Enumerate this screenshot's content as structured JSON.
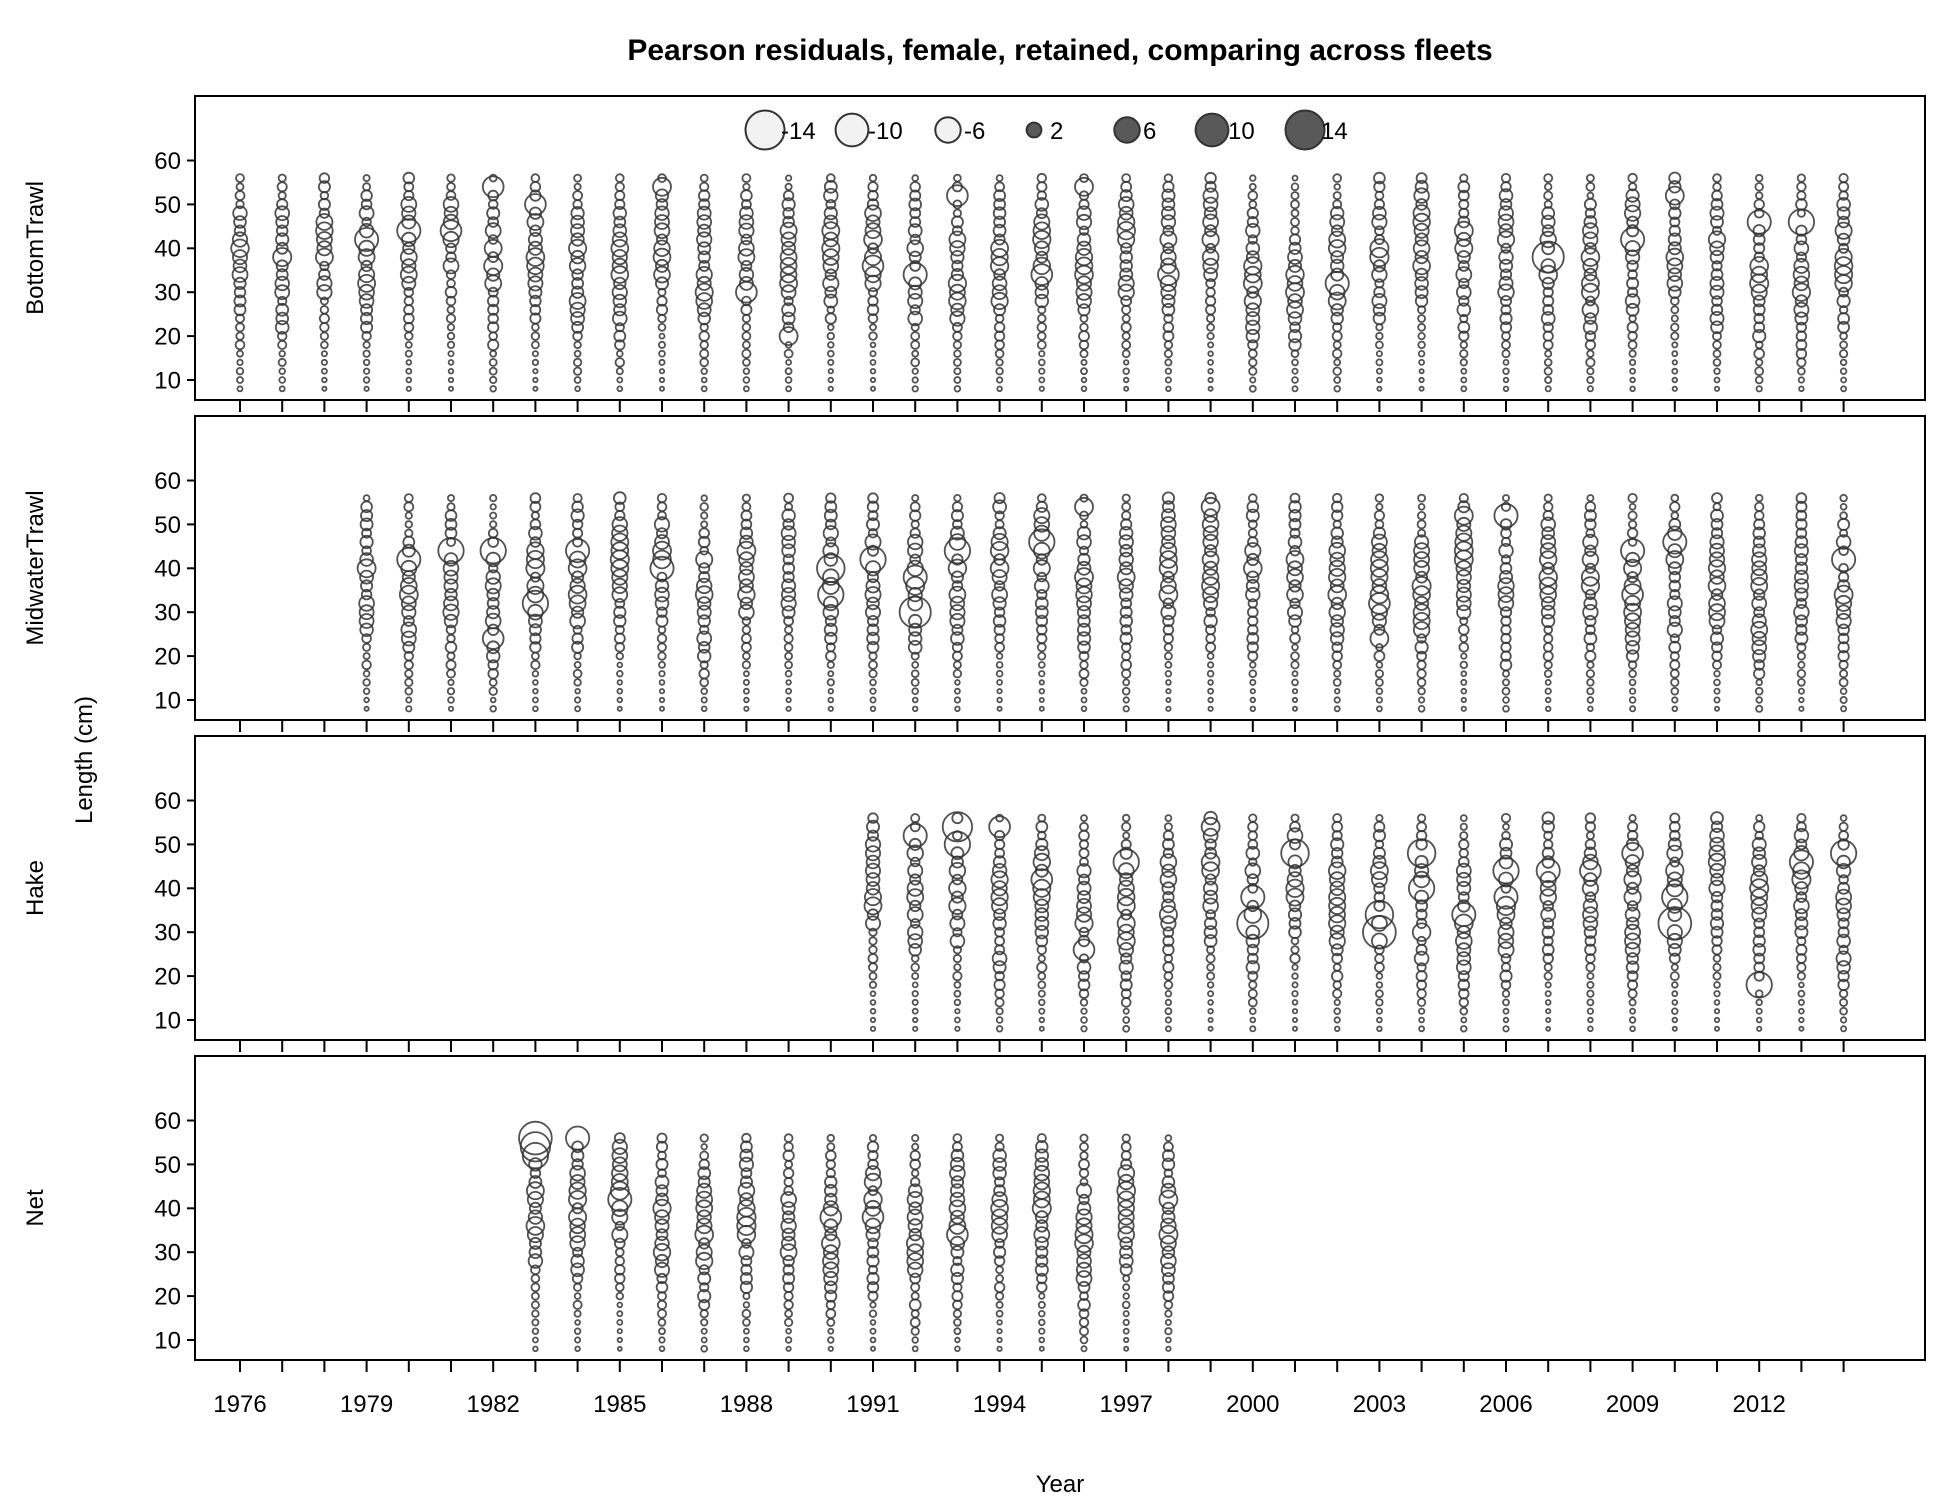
{
  "chart_data": {
    "type": "bubble",
    "title": "Pearson residuals, female, retained, comparing across fleets",
    "xlabel": "Year",
    "ylabel": "Length (cm)",
    "x_ticks": [
      "1976",
      "1979",
      "1982",
      "1985",
      "1988",
      "1991",
      "1994",
      "1997",
      "2000",
      "2003",
      "2006",
      "2009",
      "2012"
    ],
    "y_ticks": [
      "10",
      "20",
      "30",
      "40",
      "50",
      "60"
    ],
    "xlim": [
      1975,
      2015
    ],
    "ylim": [
      5,
      72
    ],
    "length_bins": [
      8,
      10,
      12,
      14,
      16,
      18,
      20,
      22,
      24,
      26,
      28,
      30,
      32,
      34,
      36,
      38,
      40,
      42,
      44,
      46,
      48,
      50,
      52,
      54,
      56
    ],
    "legend": {
      "position": "top-center",
      "entries": [
        {
          "label": "-14",
          "value": -14,
          "fill": "#f2f2f2"
        },
        {
          "label": "-10",
          "value": -10,
          "fill": "#f2f2f2"
        },
        {
          "label": "-6",
          "value": -6,
          "fill": "#f2f2f2"
        },
        {
          "label": "2",
          "value": 2,
          "fill": "#595959"
        },
        {
          "label": "6",
          "value": 6,
          "fill": "#595959"
        },
        {
          "label": "10",
          "value": 10,
          "fill": "#595959"
        },
        {
          "label": "14",
          "value": 14,
          "fill": "#595959"
        }
      ]
    },
    "colors": {
      "negative": "#f2f2f2",
      "positive": "#595959",
      "outline": "#333333"
    },
    "panels": [
      {
        "name": "BottomTrawl",
        "years": [
          1976,
          1977,
          1978,
          1979,
          1980,
          1981,
          1982,
          1983,
          1984,
          1985,
          1986,
          1987,
          1988,
          1989,
          1990,
          1991,
          1992,
          1993,
          1994,
          1995,
          1996,
          1997,
          1998,
          1999,
          2000,
          2001,
          2002,
          2003,
          2004,
          2005,
          2006,
          2007,
          2008,
          2009,
          2010,
          2011,
          2012,
          2013,
          2014
        ],
        "large_residuals": [
          {
            "year": 1979,
            "length": 42,
            "value": -5
          },
          {
            "year": 1980,
            "length": 44,
            "value": -5
          },
          {
            "year": 1981,
            "length": 44,
            "value": 4
          },
          {
            "year": 1982,
            "length": 54,
            "value": 4
          },
          {
            "year": 1983,
            "length": 50,
            "value": -4
          },
          {
            "year": 1986,
            "length": 54,
            "value": 3
          },
          {
            "year": 1988,
            "length": 30,
            "value": 4
          },
          {
            "year": 1989,
            "length": 20,
            "value": 3
          },
          {
            "year": 1991,
            "length": 36,
            "value": -4
          },
          {
            "year": 1992,
            "length": 34,
            "value": -5
          },
          {
            "year": 1993,
            "length": 52,
            "value": 4
          },
          {
            "year": 1995,
            "length": 34,
            "value": -4
          },
          {
            "year": 1996,
            "length": 54,
            "value": 3
          },
          {
            "year": 1998,
            "length": 34,
            "value": -4
          },
          {
            "year": 2001,
            "length": 30,
            "value": 3
          },
          {
            "year": 2002,
            "length": 32,
            "value": 5
          },
          {
            "year": 2005,
            "length": 44,
            "value": 3
          },
          {
            "year": 2007,
            "length": 38,
            "value": -9
          },
          {
            "year": 2009,
            "length": 42,
            "value": 5
          },
          {
            "year": 2010,
            "length": 52,
            "value": 3
          },
          {
            "year": 2012,
            "length": 46,
            "value": 5
          },
          {
            "year": 2013,
            "length": 46,
            "value": 6
          }
        ]
      },
      {
        "name": "MidwaterTrawl",
        "years": [
          1979,
          1980,
          1981,
          1982,
          1983,
          1984,
          1985,
          1986,
          1987,
          1988,
          1989,
          1990,
          1991,
          1992,
          1993,
          1994,
          1995,
          1996,
          1997,
          1998,
          1999,
          2000,
          2001,
          2002,
          2003,
          2004,
          2005,
          2006,
          2007,
          2008,
          2009,
          2010,
          2011,
          2012,
          2013,
          2014
        ],
        "large_residuals": [
          {
            "year": 1979,
            "length": 40,
            "value": 3
          },
          {
            "year": 1980,
            "length": 42,
            "value": 5
          },
          {
            "year": 1981,
            "length": 44,
            "value": 6
          },
          {
            "year": 1982,
            "length": 44,
            "value": 6
          },
          {
            "year": 1982,
            "length": 24,
            "value": 4
          },
          {
            "year": 1983,
            "length": 32,
            "value": 6
          },
          {
            "year": 1984,
            "length": 44,
            "value": 5
          },
          {
            "year": 1986,
            "length": 40,
            "value": 5
          },
          {
            "year": 1988,
            "length": 44,
            "value": 3
          },
          {
            "year": 1990,
            "length": 40,
            "value": 7
          },
          {
            "year": 1990,
            "length": 34,
            "value": -6
          },
          {
            "year": 1991,
            "length": 42,
            "value": 6
          },
          {
            "year": 1992,
            "length": 30,
            "value": 9
          },
          {
            "year": 1992,
            "length": 38,
            "value": -5
          },
          {
            "year": 1993,
            "length": 44,
            "value": 6
          },
          {
            "year": 1995,
            "length": 46,
            "value": 6
          },
          {
            "year": 1996,
            "length": 54,
            "value": 3
          },
          {
            "year": 1998,
            "length": 34,
            "value": -3
          },
          {
            "year": 1999,
            "length": 54,
            "value": 3
          },
          {
            "year": 2003,
            "length": 32,
            "value": 4
          },
          {
            "year": 2003,
            "length": 24,
            "value": 3
          },
          {
            "year": 2005,
            "length": 52,
            "value": 3
          },
          {
            "year": 2006,
            "length": 52,
            "value": 5
          },
          {
            "year": 2009,
            "length": 34,
            "value": 4
          },
          {
            "year": 2009,
            "length": 44,
            "value": 5
          },
          {
            "year": 2010,
            "length": 46,
            "value": 5
          },
          {
            "year": 2014,
            "length": 42,
            "value": 5
          }
        ]
      },
      {
        "name": "Hake",
        "years": [
          1991,
          1992,
          1993,
          1994,
          1995,
          1996,
          1997,
          1998,
          1999,
          2000,
          2001,
          2002,
          2003,
          2004,
          2005,
          2006,
          2007,
          2008,
          2009,
          2010,
          2011,
          2012,
          2013,
          2014
        ],
        "large_residuals": [
          {
            "year": 1992,
            "length": 52,
            "value": 5
          },
          {
            "year": 1993,
            "length": 54,
            "value": 8
          },
          {
            "year": 1993,
            "length": 50,
            "value": 6
          },
          {
            "year": 1994,
            "length": 54,
            "value": 4
          },
          {
            "year": 1995,
            "length": 42,
            "value": -4
          },
          {
            "year": 1996,
            "length": 26,
            "value": 4
          },
          {
            "year": 1997,
            "length": 46,
            "value": 6
          },
          {
            "year": 1999,
            "length": 54,
            "value": 3
          },
          {
            "year": 2000,
            "length": 32,
            "value": 9
          },
          {
            "year": 2000,
            "length": 38,
            "value": -5
          },
          {
            "year": 2001,
            "length": 48,
            "value": 7
          },
          {
            "year": 2003,
            "length": 30,
            "value": 10
          },
          {
            "year": 2003,
            "length": 34,
            "value": 7
          },
          {
            "year": 2004,
            "length": 48,
            "value": 7
          },
          {
            "year": 2004,
            "length": 40,
            "value": 6
          },
          {
            "year": 2005,
            "length": 34,
            "value": -5
          },
          {
            "year": 2006,
            "length": 44,
            "value": -6
          },
          {
            "year": 2006,
            "length": 38,
            "value": 5
          },
          {
            "year": 2007,
            "length": 44,
            "value": -5
          },
          {
            "year": 2008,
            "length": 44,
            "value": 4
          },
          {
            "year": 2009,
            "length": 48,
            "value": 4
          },
          {
            "year": 2010,
            "length": 38,
            "value": -6
          },
          {
            "year": 2010,
            "length": 32,
            "value": 10
          },
          {
            "year": 2012,
            "length": 18,
            "value": 6
          },
          {
            "year": 2013,
            "length": 46,
            "value": -5
          },
          {
            "year": 2014,
            "length": 48,
            "value": 6
          }
        ]
      },
      {
        "name": "Net",
        "years": [
          1983,
          1984,
          1985,
          1986,
          1987,
          1988,
          1989,
          1990,
          1991,
          1992,
          1993,
          1994,
          1995,
          1996,
          1997,
          1998
        ],
        "large_residuals": [
          {
            "year": 1983,
            "length": 56,
            "value": 10
          },
          {
            "year": 1983,
            "length": 54,
            "value": 8
          },
          {
            "year": 1983,
            "length": 52,
            "value": 6
          },
          {
            "year": 1984,
            "length": 56,
            "value": 5
          },
          {
            "year": 1985,
            "length": 42,
            "value": 5
          },
          {
            "year": 1990,
            "length": 38,
            "value": 4
          },
          {
            "year": 1991,
            "length": 38,
            "value": 4
          },
          {
            "year": 1993,
            "length": 34,
            "value": 4
          },
          {
            "year": 1998,
            "length": 42,
            "value": 3
          }
        ]
      }
    ]
  }
}
